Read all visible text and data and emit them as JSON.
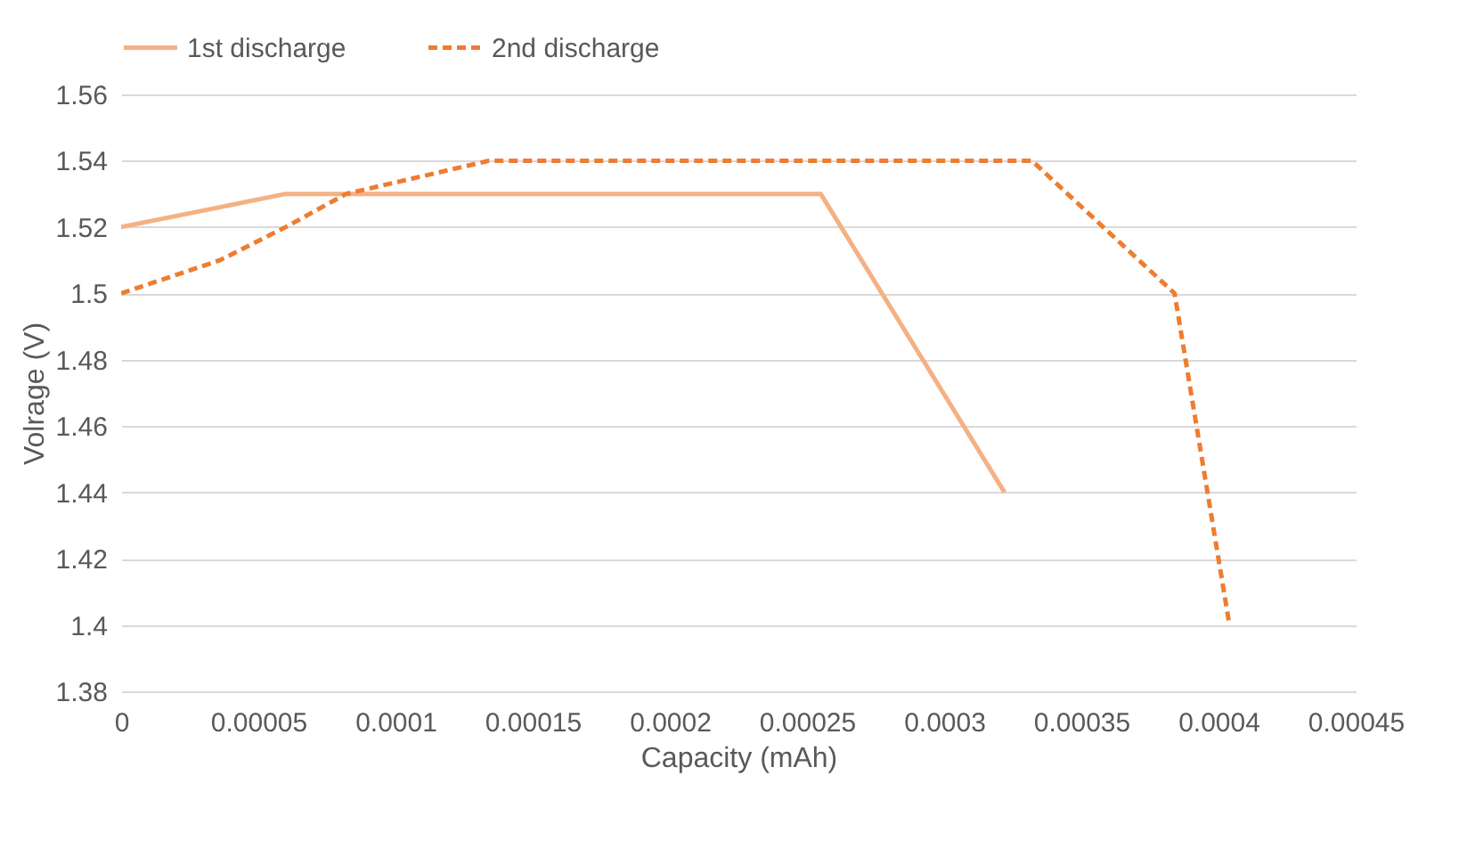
{
  "chart_data": {
    "type": "line",
    "xlabel": "Capacity (mAh)",
    "ylabel": "Volrage (V)",
    "series": [
      {
        "name": "1st discharge",
        "color": "#f4b183",
        "line_style": "solid",
        "x": [
          0,
          6e-05,
          0.000255,
          0.000322
        ],
        "values": [
          1.52,
          1.53,
          1.53,
          1.44
        ]
      },
      {
        "name": "2nd discharge",
        "color": "#ed7d31",
        "line_style": "dashed",
        "x": [
          0,
          3.6e-05,
          6e-05,
          8.2e-05,
          0.000134,
          0.000332,
          0.000384,
          0.000404
        ],
        "values": [
          1.5,
          1.51,
          1.52,
          1.53,
          1.54,
          1.54,
          1.5,
          1.4
        ]
      }
    ],
    "xlim": [
      0,
      0.00045
    ],
    "xticks": [
      0,
      {
        "value": 5e-05,
        "label": "0.00005"
      },
      0.0001,
      0.00015,
      0.0002,
      0.00025,
      0.0003,
      0.00035,
      0.0004,
      0.00045
    ],
    "ylim": [
      1.38,
      1.56
    ],
    "yticks": [
      1.38,
      1.4,
      1.42,
      1.44,
      1.46,
      1.48,
      1.5,
      1.52,
      1.54,
      1.56
    ],
    "grid": "y",
    "legend": "top",
    "marker": "none"
  }
}
